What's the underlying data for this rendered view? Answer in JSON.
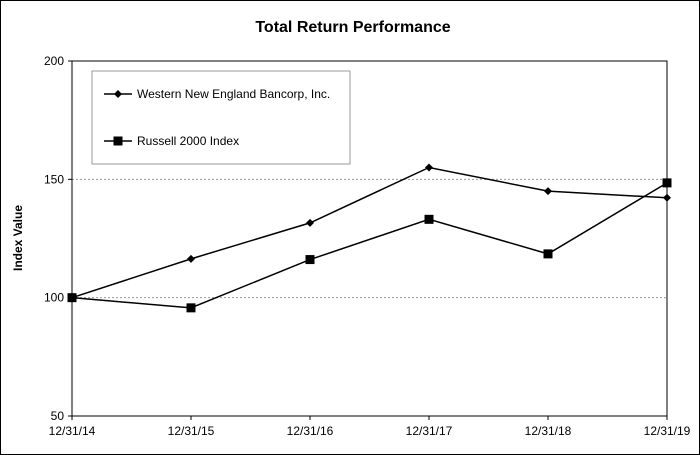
{
  "chart_data": {
    "type": "line",
    "title": "Total Return Performance",
    "xlabel": "",
    "ylabel": "Index Value",
    "categories": [
      "12/31/14",
      "12/31/15",
      "12/31/16",
      "12/31/17",
      "12/31/18",
      "12/31/19"
    ],
    "y_ticks": [
      50,
      100,
      150,
      200
    ],
    "ylim": [
      50,
      200
    ],
    "gridlines": [
      100,
      150
    ],
    "legend_position": "top-left",
    "series": [
      {
        "name": "Western New England Bancorp, Inc.",
        "marker": "diamond",
        "color": "#000000",
        "values": [
          100,
          116.4,
          131.6,
          155,
          145,
          142.2
        ]
      },
      {
        "name": "Russell 2000 Index",
        "marker": "square",
        "color": "#000000",
        "values": [
          100,
          95.7,
          116.1,
          133.1,
          118.5,
          148.5
        ]
      }
    ]
  }
}
